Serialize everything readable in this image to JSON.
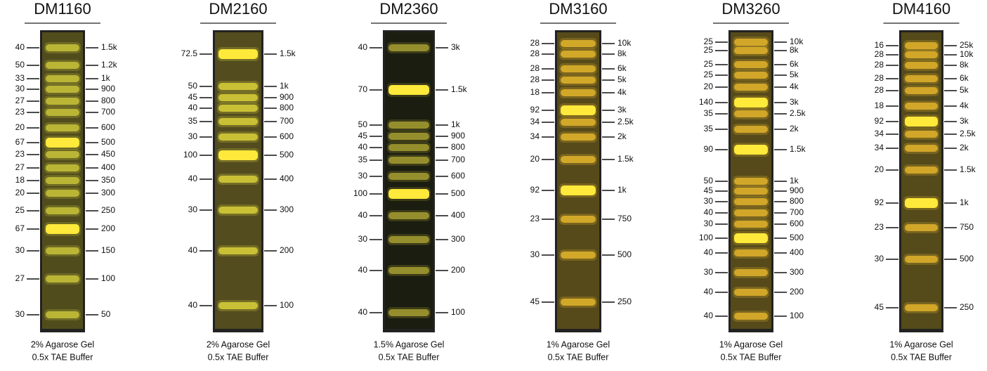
{
  "highlight_color": "#e3001b",
  "ladders": [
    {
      "title": "DM1160",
      "gel_color": "#514c1c",
      "band_color": "#c9c23a",
      "notes": [
        "2% Agarose Gel",
        "0.5x TAE Buffer"
      ],
      "bands": [
        {
          "left": "40",
          "right": "1.5k"
        },
        {
          "left": "50",
          "right": "1.2k"
        },
        {
          "left": "33",
          "right": "1k"
        },
        {
          "left": "30",
          "right": "900"
        },
        {
          "left": "27",
          "right": "800"
        },
        {
          "left": "23",
          "right": "700"
        },
        {
          "left": "20",
          "right": "600"
        },
        {
          "left": "67",
          "right": "500",
          "highlight": true
        },
        {
          "left": "23",
          "right": "450"
        },
        {
          "left": "27",
          "right": "400"
        },
        {
          "left": "18",
          "right": "350"
        },
        {
          "left": "20",
          "right": "300"
        },
        {
          "left": "25",
          "right": "250"
        },
        {
          "left": "67",
          "right": "200",
          "highlight": true
        },
        {
          "left": "30",
          "right": "150"
        },
        {
          "left": "27",
          "right": "100"
        },
        {
          "left": "30",
          "right": "50"
        }
      ]
    },
    {
      "title": "DM2160",
      "gel_color": "#534c1e",
      "band_color": "#d9cf3a",
      "notes": [
        "2% Agarose Gel",
        "0.5x TAE Buffer"
      ],
      "bands": [
        {
          "left": "72.5",
          "right": "1.5k",
          "highlight": true
        },
        {
          "left": "50",
          "right": "1k"
        },
        {
          "left": "45",
          "right": "900"
        },
        {
          "left": "40",
          "right": "800"
        },
        {
          "left": "35",
          "right": "700"
        },
        {
          "left": "30",
          "right": "600"
        },
        {
          "left": "100",
          "right": "500",
          "highlight": true
        },
        {
          "left": "40",
          "right": "400"
        },
        {
          "left": "30",
          "right": "300"
        },
        {
          "left": "40",
          "right": "200"
        },
        {
          "left": "40",
          "right": "100"
        }
      ]
    },
    {
      "title": "DM2360",
      "gel_color": "#1b1d10",
      "band_color": "#a59c30",
      "notes": [
        "1.5% Agarose Gel",
        "0.5x TAE Buffer"
      ],
      "bands": [
        {
          "left": "40",
          "right": "3k"
        },
        {
          "left": "70",
          "right": "1.5k",
          "highlight": true
        },
        {
          "left": "50",
          "right": "1k"
        },
        {
          "left": "45",
          "right": "900"
        },
        {
          "left": "40",
          "right": "800"
        },
        {
          "left": "35",
          "right": "700"
        },
        {
          "left": "30",
          "right": "600"
        },
        {
          "left": "100",
          "right": "500",
          "highlight": true
        },
        {
          "left": "40",
          "right": "400"
        },
        {
          "left": "30",
          "right": "300"
        },
        {
          "left": "40",
          "right": "200"
        },
        {
          "left": "40",
          "right": "100"
        }
      ]
    },
    {
      "title": "DM3160",
      "gel_color": "#574a1a",
      "band_color": "#e2b42c",
      "notes": [
        "1% Agarose Gel",
        "0.5x TAE Buffer"
      ],
      "bands": [
        {
          "left": "28",
          "right": "10k"
        },
        {
          "left": "28",
          "right": "8k"
        },
        {
          "left": "28",
          "right": "6k"
        },
        {
          "left": "28",
          "right": "5k"
        },
        {
          "left": "18",
          "right": "4k"
        },
        {
          "left": "92",
          "right": "3k",
          "highlight": true
        },
        {
          "left": "34",
          "right": "2.5k"
        },
        {
          "left": "34",
          "right": "2k"
        },
        {
          "left": "20",
          "right": "1.5k"
        },
        {
          "left": "92",
          "right": "1k",
          "highlight": true
        },
        {
          "left": "23",
          "right": "750"
        },
        {
          "left": "30",
          "right": "500"
        },
        {
          "left": "45",
          "right": "250"
        }
      ]
    },
    {
      "title": "DM3260",
      "gel_color": "#564a1a",
      "band_color": "#e0b22c",
      "notes": [
        "1% Agarose Gel",
        "0.5x TAE Buffer"
      ],
      "bands": [
        {
          "left": "25",
          "right": "10k"
        },
        {
          "left": "25",
          "right": "8k"
        },
        {
          "left": "25",
          "right": "6k"
        },
        {
          "left": "25",
          "right": "5k"
        },
        {
          "left": "20",
          "right": "4k"
        },
        {
          "left": "140",
          "right": "3k",
          "highlight": true
        },
        {
          "left": "35",
          "right": "2.5k"
        },
        {
          "left": "35",
          "right": "2k"
        },
        {
          "left": "90",
          "right": "1.5k",
          "highlight": true
        },
        {
          "left": "50",
          "right": "1k"
        },
        {
          "left": "45",
          "right": "900"
        },
        {
          "left": "30",
          "right": "800"
        },
        {
          "left": "40",
          "right": "700"
        },
        {
          "left": "30",
          "right": "600"
        },
        {
          "left": "100",
          "right": "500",
          "highlight": true
        },
        {
          "left": "40",
          "right": "400"
        },
        {
          "left": "30",
          "right": "300"
        },
        {
          "left": "40",
          "right": "200"
        },
        {
          "left": "40",
          "right": "100"
        }
      ]
    },
    {
      "title": "DM4160",
      "gel_color": "#544a1a",
      "band_color": "#e0b22c",
      "notes": [
        "1% Agarose Gel",
        "0.5x TAE Buffer"
      ],
      "bands": [
        {
          "left": "16",
          "right": "25k"
        },
        {
          "left": "28",
          "right": "10k"
        },
        {
          "left": "28",
          "right": "8k"
        },
        {
          "left": "28",
          "right": "6k"
        },
        {
          "left": "28",
          "right": "5k"
        },
        {
          "left": "18",
          "right": "4k"
        },
        {
          "left": "92",
          "right": "3k",
          "highlight": true
        },
        {
          "left": "34",
          "right": "2.5k"
        },
        {
          "left": "34",
          "right": "2k"
        },
        {
          "left": "20",
          "right": "1.5k"
        },
        {
          "left": "92",
          "right": "1k",
          "highlight": true
        },
        {
          "left": "23",
          "right": "750"
        },
        {
          "left": "30",
          "right": "500"
        },
        {
          "left": "45",
          "right": "250"
        }
      ]
    }
  ]
}
